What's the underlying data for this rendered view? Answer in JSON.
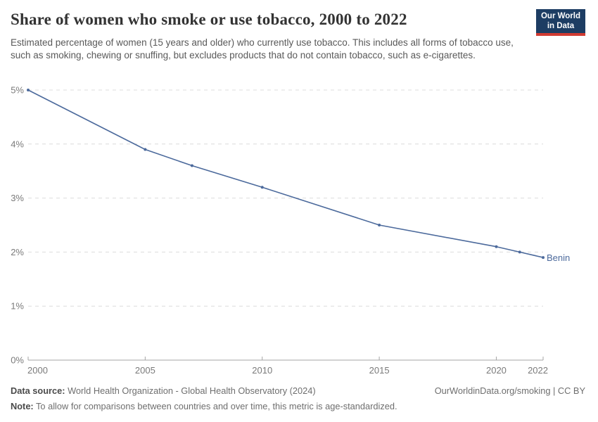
{
  "header": {
    "title": "Share of women who smoke or use tobacco, 2000 to 2022",
    "subtitle": "Estimated percentage of women (15 years and older) who currently use tobacco. This includes all forms of tobacco use, such as smoking, chewing or snuffing, but excludes products that do not contain tobacco, such as e-cigarettes.",
    "logo": {
      "line1": "Our World",
      "line2": "in Data"
    }
  },
  "chart_data": {
    "type": "line",
    "title": "Share of women who smoke or use tobacco, 2000 to 2022",
    "xlabel": "",
    "ylabel": "",
    "xlim": [
      2000,
      2022
    ],
    "ylim": [
      0,
      5
    ],
    "grid": "horizontal-dashed",
    "legend_position": "end-of-line-label",
    "series": [
      {
        "name": "Benin",
        "color": "#4c6a9c",
        "x": [
          2000,
          2005,
          2007,
          2010,
          2015,
          2020,
          2021,
          2022
        ],
        "values": [
          5.0,
          3.9,
          3.6,
          3.2,
          2.5,
          2.1,
          2.0,
          1.9
        ]
      }
    ],
    "x_ticks": [
      {
        "value": 2000,
        "label": "2000"
      },
      {
        "value": 2005,
        "label": "2005"
      },
      {
        "value": 2010,
        "label": "2010"
      },
      {
        "value": 2015,
        "label": "2015"
      },
      {
        "value": 2020,
        "label": "2020"
      },
      {
        "value": 2022,
        "label": "2022"
      }
    ],
    "y_ticks": [
      {
        "value": 0,
        "label": "0%"
      },
      {
        "value": 1,
        "label": "1%"
      },
      {
        "value": 2,
        "label": "2%"
      },
      {
        "value": 3,
        "label": "3%"
      },
      {
        "value": 4,
        "label": "4%"
      },
      {
        "value": 5,
        "label": "5%"
      }
    ]
  },
  "footer": {
    "datasource_label": "Data source:",
    "datasource_text": " World Health Organization - Global Health Observatory (2024)",
    "link": "OurWorldinData.org/smoking | CC BY",
    "note_label": "Note:",
    "note_text": " To allow for comparisons between countries and over time, this metric is age-standardized."
  },
  "colors": {
    "line": "#4c6a9c",
    "logo_navy": "#1d3d63",
    "logo_red": "#d13b32",
    "gridline": "#dcdcdc",
    "axis": "#a5a5a5",
    "tick_text": "#7a7a7a",
    "title_text": "#333333",
    "subtitle_text": "#595959"
  }
}
